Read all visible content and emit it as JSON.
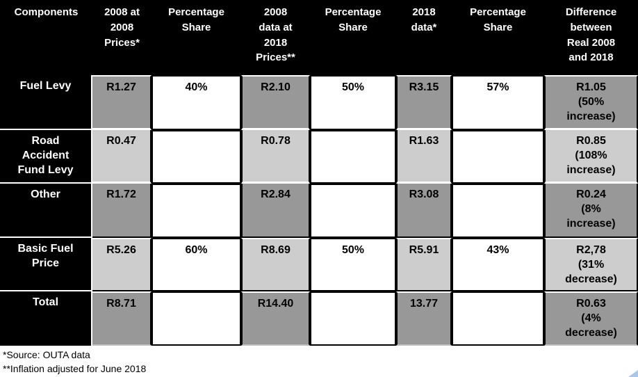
{
  "table": {
    "headers": [
      "Components",
      "2008 at\n2008\nPrices*",
      "Percentage\nShare",
      "2008\ndata at\n2018\nPrices**",
      "Percentage\nShare",
      "2018\ndata*",
      "Percentage\nShare",
      "Difference\nbetween\nReal 2008\nand 2018"
    ],
    "rows": [
      {
        "component": "Fuel Levy",
        "values": [
          "R1.27",
          "40%",
          "R2.10",
          "50%",
          "R3.15",
          "57%",
          "R1.05\n(50%\nincrease)"
        ]
      },
      {
        "component": "Road\nAccident\nFund Levy",
        "values": [
          "R0.47",
          "",
          "R0.78",
          "",
          "R1.63",
          "",
          "R0.85\n(108%\nincrease)"
        ]
      },
      {
        "component": "Other",
        "values": [
          "R1.72",
          "",
          "R2.84",
          "",
          "R3.08",
          "",
          "R0.24\n(8%\nincrease)"
        ]
      },
      {
        "component": "Basic Fuel\nPrice",
        "values": [
          "R5.26",
          "60%",
          "R8.69",
          "50%",
          "R5.91",
          "43%",
          "R2,78\n(31%\ndecrease)"
        ]
      },
      {
        "component": "Total",
        "values": [
          "R8.71",
          "",
          "R14.40",
          "",
          "13.77",
          "",
          "R0.63\n(4%\ndecrease)"
        ]
      }
    ]
  },
  "footnotes": {
    "source": "*Source: OUTA data",
    "inflation": "**Inflation adjusted for June 2018"
  },
  "colors": {
    "header_bg": "#000000",
    "header_text": "#ffffff",
    "row_gray_medium": "#989898",
    "row_gray_light": "#cdcdcd",
    "cell_white": "#ffffff",
    "border_black": "#000000",
    "corner_triangle": "#a9c7ea"
  }
}
